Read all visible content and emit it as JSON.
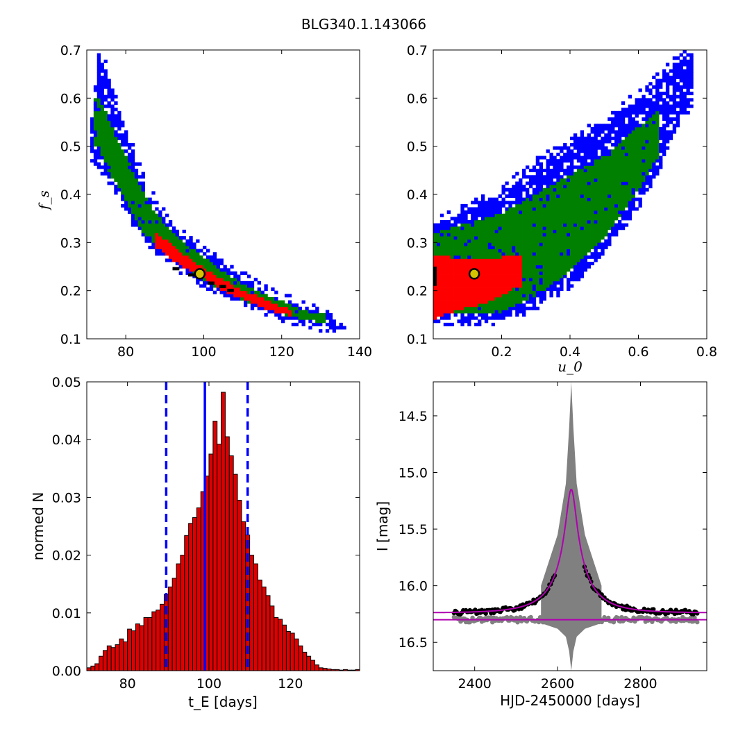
{
  "figure_title": "BLG340.1.143066",
  "colors": {
    "contour_1sigma": "#ff0000",
    "contour_2sigma": "#008000",
    "contour_3sigma": "#0000ff",
    "best_fit_bins": "#000000",
    "best_fit_marker": "#d4c400",
    "hist_bar": "#dd0000",
    "hist_lines": "#0000ff",
    "model_curve": "#b000b0",
    "data_points": "#000000",
    "residual_points": "#808080"
  },
  "chart_data": [
    {
      "panel": "top-left",
      "type": "heatmap",
      "xlabel": "",
      "ylabel": "f_s",
      "xlim": [
        70,
        140
      ],
      "ylim": [
        0.1,
        0.7
      ],
      "x_ticks": [
        "80",
        "100",
        "120",
        "140"
      ],
      "y_ticks": [
        "0.1",
        "0.2",
        "0.3",
        "0.4",
        "0.5",
        "0.6",
        "0.7"
      ],
      "best_fit": {
        "x": 99,
        "y": 0.235
      },
      "bands": [
        {
          "level": "3sigma",
          "color": "blue",
          "x": [
            71.5,
            73,
            75,
            77,
            80,
            83,
            86,
            90,
            95,
            100,
            105,
            110,
            115,
            120,
            125,
            130,
            136
          ],
          "y_low": [
            0.47,
            0.46,
            0.44,
            0.42,
            0.37,
            0.33,
            0.295,
            0.265,
            0.24,
            0.215,
            0.195,
            0.175,
            0.16,
            0.145,
            0.135,
            0.125,
            0.12
          ],
          "y_high": [
            0.56,
            0.69,
            0.66,
            0.61,
            0.53,
            0.46,
            0.4,
            0.35,
            0.31,
            0.28,
            0.255,
            0.225,
            0.2,
            0.18,
            0.165,
            0.15,
            0.135
          ]
        },
        {
          "level": "2sigma",
          "color": "green",
          "x": [
            73,
            75,
            77,
            80,
            83,
            86,
            90,
            95,
            100,
            105,
            110,
            115,
            120,
            125,
            130
          ],
          "y_low": [
            0.5,
            0.46,
            0.43,
            0.385,
            0.34,
            0.305,
            0.275,
            0.248,
            0.222,
            0.2,
            0.18,
            0.165,
            0.152,
            0.142,
            0.135
          ],
          "y_high": [
            0.6,
            0.57,
            0.53,
            0.48,
            0.43,
            0.38,
            0.34,
            0.3,
            0.27,
            0.24,
            0.215,
            0.195,
            0.178,
            0.162,
            0.15
          ]
        },
        {
          "level": "1sigma",
          "color": "red",
          "x": [
            88,
            92,
            96,
            100,
            104,
            108,
            112,
            116,
            120,
            122
          ],
          "y_low": [
            0.29,
            0.263,
            0.245,
            0.225,
            0.205,
            0.19,
            0.177,
            0.163,
            0.153,
            0.15
          ],
          "y_high": [
            0.32,
            0.295,
            0.27,
            0.248,
            0.228,
            0.21,
            0.195,
            0.18,
            0.168,
            0.163
          ]
        }
      ]
    },
    {
      "panel": "top-right",
      "type": "heatmap",
      "xlabel": "u_0",
      "ylabel": "",
      "xlim": [
        0,
        0.8
      ],
      "ylim": [
        0.1,
        0.7
      ],
      "x_ticks": [
        "0.2",
        "0.4",
        "0.6",
        "0.8"
      ],
      "y_ticks": [
        "0.1",
        "0.2",
        "0.3",
        "0.4",
        "0.5",
        "0.6",
        "0.7"
      ],
      "best_fit": {
        "x": 0.12,
        "y": 0.235
      },
      "bands": [
        {
          "level": "3sigma",
          "color": "blue",
          "x": [
            0,
            0.1,
            0.2,
            0.3,
            0.4,
            0.5,
            0.6,
            0.65,
            0.7,
            0.75
          ],
          "y_low": [
            0.14,
            0.135,
            0.14,
            0.17,
            0.21,
            0.28,
            0.38,
            0.44,
            0.52,
            0.58
          ],
          "y_high": [
            0.33,
            0.37,
            0.4,
            0.46,
            0.5,
            0.55,
            0.6,
            0.63,
            0.67,
            0.69
          ]
        },
        {
          "level": "2sigma",
          "color": "green",
          "x": [
            0,
            0.1,
            0.2,
            0.3,
            0.4,
            0.5,
            0.6,
            0.65
          ],
          "y_low": [
            0.16,
            0.15,
            0.155,
            0.19,
            0.24,
            0.31,
            0.41,
            0.47
          ],
          "y_high": [
            0.32,
            0.34,
            0.36,
            0.4,
            0.44,
            0.48,
            0.54,
            0.57
          ]
        },
        {
          "level": "1sigma",
          "color": "red",
          "x": [
            0,
            0.05,
            0.1,
            0.15,
            0.2,
            0.25
          ],
          "y_low": [
            0.14,
            0.155,
            0.165,
            0.175,
            0.19,
            0.21
          ],
          "y_high": [
            0.275,
            0.27,
            0.265,
            0.265,
            0.27,
            0.27
          ]
        }
      ]
    },
    {
      "panel": "bottom-left",
      "type": "bar",
      "xlabel": "t_E  [days]",
      "ylabel": "normed N",
      "xlim": [
        70,
        137
      ],
      "ylim": [
        0,
        0.05
      ],
      "x_ticks": [
        "80",
        "100",
        "120"
      ],
      "y_ticks": [
        "0.00",
        "0.01",
        "0.02",
        "0.03",
        "0.04",
        "0.05"
      ],
      "bin_start": 70,
      "bin_width": 1,
      "values": [
        0.0005,
        0.0008,
        0.0012,
        0.0025,
        0.0035,
        0.0043,
        0.004,
        0.0045,
        0.0055,
        0.005,
        0.0072,
        0.0069,
        0.0081,
        0.0078,
        0.0092,
        0.0092,
        0.0102,
        0.0105,
        0.0115,
        0.0132,
        0.0145,
        0.016,
        0.0185,
        0.02,
        0.0234,
        0.0255,
        0.0265,
        0.0282,
        0.031,
        0.0337,
        0.0375,
        0.0432,
        0.0392,
        0.0482,
        0.0405,
        0.0372,
        0.034,
        0.0295,
        0.0258,
        0.0235,
        0.02,
        0.0185,
        0.0157,
        0.0145,
        0.013,
        0.0112,
        0.0092,
        0.0089,
        0.0079,
        0.0068,
        0.0065,
        0.0055,
        0.0043,
        0.0032,
        0.0025,
        0.0018,
        0.001,
        0.0005,
        0.0004,
        0.0003,
        0.0002,
        0.0002,
        0.0001,
        0.0002,
        0.0001,
        0.0001,
        0.0002
      ],
      "vlines": [
        {
          "x": 89.5,
          "style": "dashed"
        },
        {
          "x": 99,
          "style": "solid"
        },
        {
          "x": 109.5,
          "style": "dashed"
        }
      ]
    },
    {
      "panel": "bottom-right",
      "type": "line",
      "xlabel": "HJD-2450000 [days]",
      "ylabel": "I [mag]",
      "xlim": [
        2300,
        2960
      ],
      "ylim": [
        16.75,
        14.2
      ],
      "y_inverted": true,
      "x_ticks": [
        "2400",
        "2600",
        "2800"
      ],
      "y_ticks": [
        "14.5",
        "15.0",
        "15.5",
        "16.0",
        "16.5"
      ],
      "model": {
        "t0": 2633,
        "tE": 99,
        "u0": 0.12,
        "fs": 0.235,
        "I_base": 16.24
      },
      "baseline_mag": 16.3,
      "model_envelope": {
        "t": [
          2560,
          2600,
          2620,
          2628,
          2633,
          2638,
          2646,
          2666,
          2706
        ],
        "mag_bright": [
          16.0,
          15.55,
          15.1,
          14.6,
          14.2,
          14.6,
          15.1,
          15.55,
          16.0
        ],
        "mag_faint_residual": [
          16.33,
          16.38,
          16.45,
          16.58,
          16.75,
          16.58,
          16.45,
          16.38,
          16.33
        ]
      },
      "data_time_ranges": [
        [
          2350,
          2595
        ],
        [
          2665,
          2940
        ]
      ],
      "data_note": ""
    }
  ]
}
